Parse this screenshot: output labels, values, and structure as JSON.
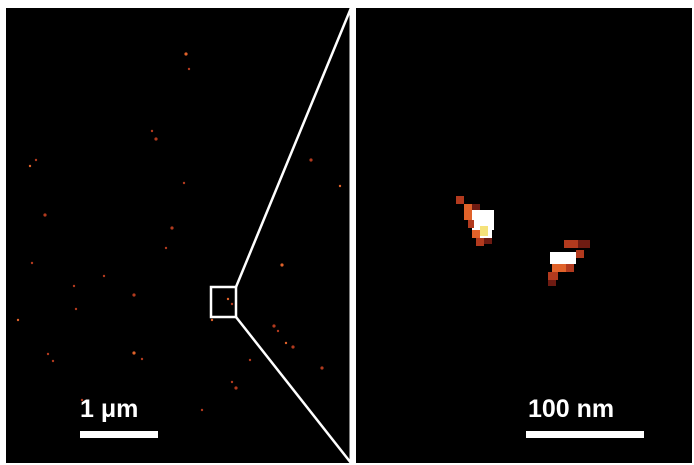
{
  "panels": {
    "overview": {
      "scale_bar_label": "1 μm"
    },
    "zoom": {
      "scale_bar_label": "100 nm"
    }
  },
  "colors": {
    "background": "#000000",
    "frame": "#ffffff",
    "divider": "#ffffff",
    "hot_white": "#ffffff",
    "hot_yellow": "#f5e27a",
    "hot_orange": "#e0622a",
    "hot_red": "#b23a1e",
    "hot_dark_red": "#6e1b12"
  }
}
